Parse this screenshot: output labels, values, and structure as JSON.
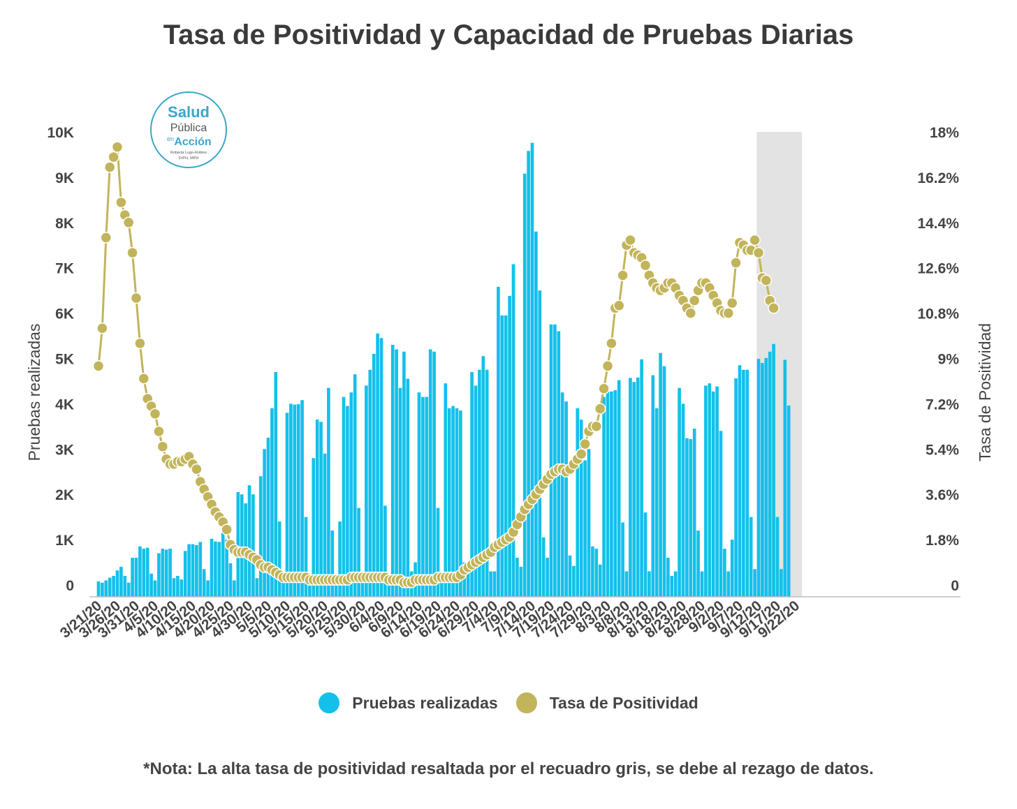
{
  "chart_data": {
    "type": "bar+line",
    "title": "Tasa de Positividad  y Capacidad de Pruebas Diarias",
    "y_left_label": "Pruebas realizadas",
    "y_right_label": "Tasa de Positividad",
    "y_left_ticks": [
      "0",
      "1K",
      "2K",
      "3K",
      "4K",
      "5K",
      "6K",
      "7K",
      "8K",
      "9K",
      "10K"
    ],
    "y_right_ticks": [
      "0",
      "1.8%",
      "3.6%",
      "5.4%",
      "7.2%",
      "9%",
      "10.8%",
      "12.6%",
      "14.4%",
      "16.2%",
      "18%"
    ],
    "ylim_left": [
      0,
      10000
    ],
    "ylim_right": [
      0,
      18
    ],
    "x_start_date": "3/21/20",
    "x_tick_labels": [
      "3/21/20",
      "3/26/20",
      "3/31/20",
      "4/5/20",
      "4/10/20",
      "4/15/20",
      "4/20/20",
      "4/25/20",
      "4/30/20",
      "5/5/20",
      "5/10/20",
      "5/15/20",
      "5/20/20",
      "5/25/20",
      "5/30/20",
      "6/4/20",
      "6/9/20",
      "6/14/20",
      "6/19/20",
      "6/24/20",
      "6/29/20",
      "7/4/20",
      "7/9/20",
      "7/14/20",
      "7/19/20",
      "7/24/20",
      "7/29/20",
      "8/3/20",
      "8/8/20",
      "8/13/20",
      "8/18/20",
      "8/23/20",
      "8/28/20",
      "9/2/20",
      "9/7/20",
      "9/12/20",
      "9/17/20",
      "9/22/20"
    ],
    "highlight_range": [
      "9/12/20",
      "9/23/20"
    ],
    "grid": false,
    "legend_position": "bottom",
    "series": [
      {
        "name": "Pruebas realizadas",
        "type": "bar",
        "axis": "left",
        "color": "#14c0ea",
        "values": [
          80,
          50,
          100,
          160,
          200,
          320,
          400,
          200,
          50,
          600,
          600,
          850,
          800,
          820,
          250,
          100,
          700,
          800,
          780,
          800,
          150,
          200,
          120,
          750,
          900,
          900,
          880,
          950,
          350,
          100,
          1020,
          960,
          950,
          1150,
          1000,
          480,
          100,
          2050,
          2000,
          1800,
          2200,
          2000,
          150,
          2400,
          3000,
          3250,
          3900,
          4700,
          1400,
          200,
          3800,
          4000,
          3980,
          3990,
          4080,
          1500,
          200,
          2800,
          3650,
          3600,
          2900,
          4350,
          1200,
          200,
          1400,
          4150,
          3950,
          4250,
          4650,
          1700,
          200,
          4400,
          4750,
          5100,
          5550,
          5450,
          1750,
          200,
          5300,
          5200,
          4350,
          5150,
          4550,
          300,
          500,
          4250,
          4150,
          4150,
          5200,
          5150,
          1700,
          200,
          4450,
          3900,
          3950,
          3900,
          3850,
          500,
          300,
          4700,
          4400,
          4750,
          5050,
          4750,
          300,
          300,
          6580,
          5950,
          5950,
          6380,
          7080,
          600,
          400,
          9080,
          9580,
          9760,
          7800,
          6500,
          1050,
          600,
          5750,
          5750,
          5600,
          4250,
          4050,
          650,
          420,
          3900,
          3650,
          2750,
          3000,
          850,
          800,
          450,
          4150,
          4270,
          4270,
          4300,
          4520,
          1380,
          300,
          4570,
          4480,
          4580,
          4980,
          1600,
          300,
          4630,
          3900,
          5120,
          4830,
          600,
          200,
          300,
          4350,
          4000,
          3240,
          3220,
          3450,
          1200,
          300,
          4400,
          4450,
          4270,
          4380,
          3400,
          800,
          300,
          1000,
          4560,
          4850,
          4750,
          4750,
          1500,
          350,
          4990,
          4900,
          5010,
          5150,
          5320,
          1500,
          350,
          4970,
          3960
        ]
      },
      {
        "name": "Tasa de Positividad",
        "type": "line",
        "axis": "right",
        "color": "#c2b45a",
        "values": [
          8.7,
          10.2,
          13.8,
          16.6,
          17.0,
          17.4,
          15.2,
          14.7,
          14.4,
          13.2,
          11.4,
          9.6,
          8.2,
          7.4,
          7.1,
          6.8,
          6.1,
          5.5,
          5.0,
          4.8,
          4.8,
          4.9,
          4.9,
          5.0,
          5.1,
          4.8,
          4.6,
          4.1,
          3.8,
          3.5,
          3.2,
          2.9,
          2.7,
          2.5,
          2.2,
          1.6,
          1.4,
          1.3,
          1.3,
          1.3,
          1.2,
          1.1,
          1.0,
          0.8,
          0.7,
          0.7,
          0.6,
          0.5,
          0.4,
          0.3,
          0.3,
          0.3,
          0.3,
          0.3,
          0.3,
          0.3,
          0.2,
          0.2,
          0.2,
          0.2,
          0.2,
          0.2,
          0.2,
          0.2,
          0.2,
          0.2,
          0.2,
          0.3,
          0.3,
          0.3,
          0.3,
          0.3,
          0.3,
          0.3,
          0.3,
          0.3,
          0.3,
          0.2,
          0.2,
          0.2,
          0.2,
          0.1,
          0.1,
          0.1,
          0.2,
          0.2,
          0.2,
          0.2,
          0.2,
          0.2,
          0.3,
          0.3,
          0.3,
          0.3,
          0.3,
          0.3,
          0.4,
          0.6,
          0.7,
          0.8,
          0.9,
          1.0,
          1.1,
          1.2,
          1.3,
          1.5,
          1.6,
          1.7,
          1.8,
          1.9,
          2.1,
          2.4,
          2.7,
          3.0,
          3.2,
          3.4,
          3.6,
          3.8,
          4.0,
          4.2,
          4.4,
          4.5,
          4.6,
          4.6,
          4.5,
          4.6,
          4.8,
          5.0,
          5.2,
          5.6,
          6.1,
          6.3,
          6.3,
          7.0,
          7.8,
          8.7,
          9.6,
          11.0,
          11.1,
          12.3,
          13.5,
          13.7,
          13.2,
          13.1,
          13.0,
          12.7,
          12.3,
          12.0,
          11.8,
          11.7,
          11.8,
          12.0,
          12.0,
          11.8,
          11.5,
          11.3,
          11.0,
          10.8,
          11.3,
          11.7,
          12.0,
          12.0,
          11.8,
          11.5,
          11.2,
          10.9,
          10.8,
          10.8,
          11.2,
          12.8,
          13.6,
          13.5,
          13.3,
          13.3,
          13.7,
          13.2,
          12.2,
          12.1,
          11.3,
          11.0
        ]
      }
    ]
  },
  "legend": {
    "bar_label": "Pruebas realizadas",
    "line_label": "Tasa de Positividad"
  },
  "logo": {
    "line1": "Salud",
    "line2": "Pública",
    "line3": "en",
    "line4": "Acción",
    "line5": "Roberta Lugo-Robles",
    "line6": "DrPH, MPH"
  },
  "note": "*Nota: La alta tasa de positividad resaltada por el recuadro gris, se debe al rezago de datos."
}
